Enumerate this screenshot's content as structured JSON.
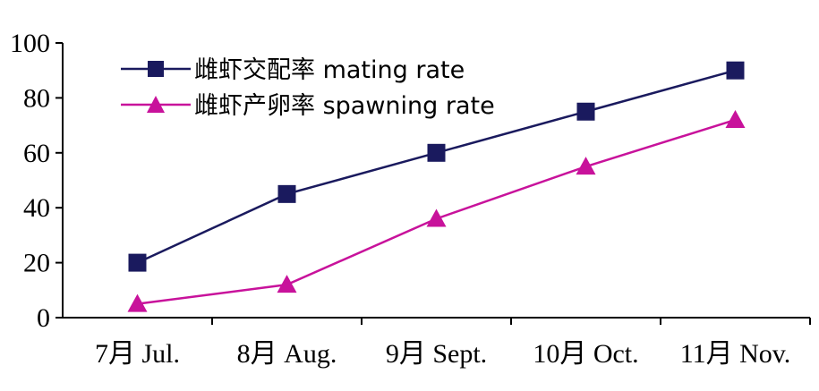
{
  "chart_data": {
    "type": "line",
    "categories": [
      "7月 Jul.",
      "8月 Aug.",
      "9月 Sept.",
      "10月 Oct.",
      "11月 Nov."
    ],
    "series": [
      {
        "name": "雌虾交配率  mating rate",
        "values": [
          20,
          45,
          60,
          75,
          90
        ],
        "color": "#1a1a5e",
        "marker": "square"
      },
      {
        "name": "雌虾产卵率  spawning rate",
        "values": [
          5,
          12,
          36,
          55,
          72
        ],
        "color": "#c8129b",
        "marker": "triangle"
      }
    ],
    "title": "",
    "xlabel": "",
    "ylabel": "",
    "ylim": [
      0,
      100
    ],
    "yticks": [
      0,
      20,
      40,
      60,
      80,
      100
    ],
    "grid": false,
    "legend_position": "top-left"
  }
}
